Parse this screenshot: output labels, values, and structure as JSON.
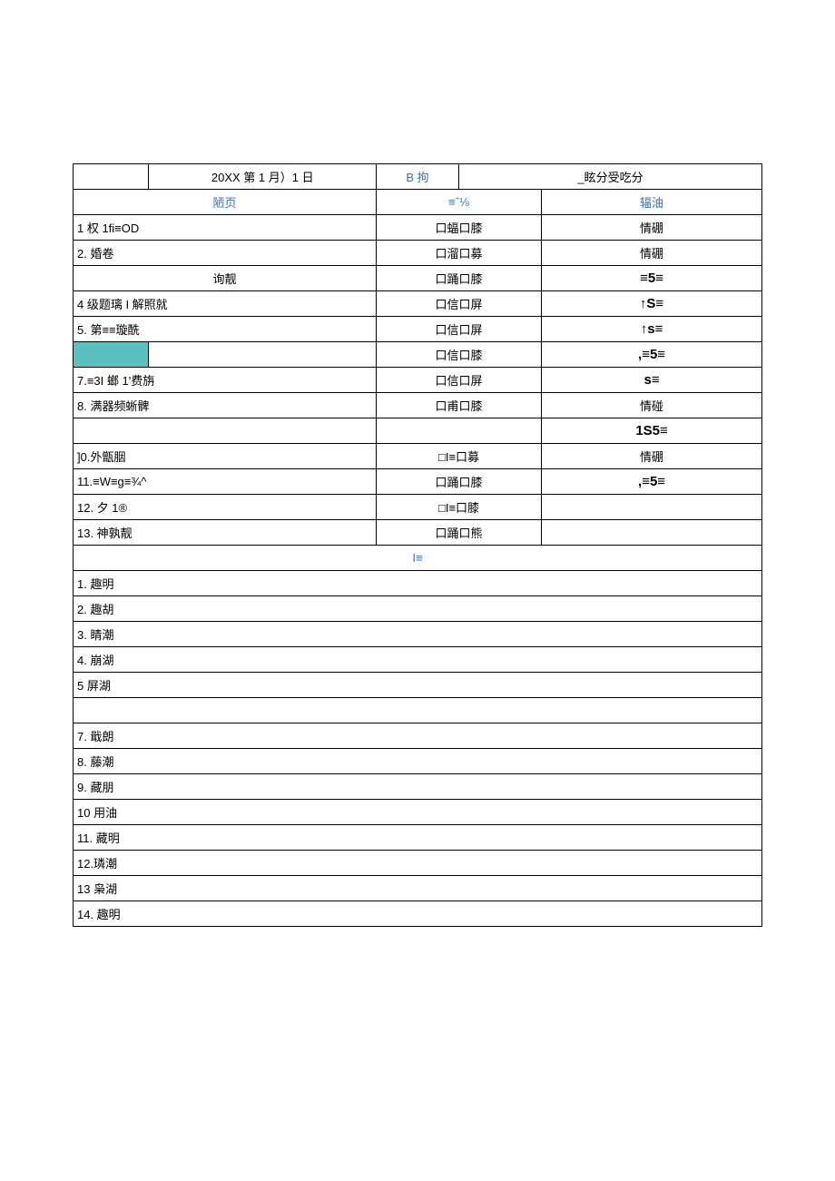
{
  "header": {
    "r1_c2": "20XX 第 1 月）1 日",
    "r1_c3": "B 拘",
    "r1_c4": "_眩分受吃分",
    "r2_c1": "陋页",
    "r2_c2": "≡ˆ⅛",
    "r2_c3": "辐油"
  },
  "section1": [
    {
      "label": "1 权 1fi≡OD",
      "mid": "口蝠口膝",
      "right": "情硼",
      "right_bold": false,
      "highlight": false
    },
    {
      "label": "2. 婚卷",
      "mid": "口溜口募",
      "right": "情硼",
      "right_bold": false,
      "highlight": false
    },
    {
      "label": "询靓",
      "label_center": true,
      "mid": "口踊口膝",
      "right": "≡5≡",
      "right_bold": true,
      "highlight": false
    },
    {
      "label": "4 级题璃 I 解照就",
      "mid": "口信口屏",
      "right": "↑S≡",
      "right_bold": true,
      "highlight": false
    },
    {
      "label": "5. 第≡≡璇酰",
      "mid": "口信口屏",
      "right": "↑s≡",
      "right_bold": true,
      "highlight": false
    },
    {
      "label": "",
      "mid": "口信口膝",
      "right": ",≡5≡",
      "right_bold": true,
      "highlight": true
    },
    {
      "label": "7.≡3I 螂 1'费旃",
      "mid": "口信口屏",
      "right": "s≡",
      "right_bold": true,
      "highlight": false
    },
    {
      "label": "8. 满器频蜥髀",
      "mid": "口甫口膝",
      "right": "情碰",
      "right_bold": false,
      "highlight": false
    },
    {
      "label": "",
      "mid": "",
      "right": "1S5≡",
      "right_bold": true,
      "highlight": false
    },
    {
      "label": "]0.外甑胭",
      "mid": "□I≡口募",
      "right": "情硼",
      "right_bold": false,
      "highlight": false
    },
    {
      "label": "11.≡W≡g≡¾^",
      "mid": "口踊口膝",
      "right": ",≡5≡",
      "right_bold": true,
      "highlight": false
    },
    {
      "label": "12. 夕 1®",
      "mid": "□I≡口膝",
      "right": "",
      "right_bold": false,
      "highlight": false
    },
    {
      "label": "13. 神孰靓",
      "mid": "口踊口熊",
      "right": "",
      "right_bold": false,
      "highlight": false
    }
  ],
  "divider": "I≡",
  "section2": [
    "1. 趣明",
    "2. 趣胡",
    "3. 睛潮",
    "4. 崩湖",
    "5 屏湖",
    "",
    "7. 戢朗",
    "8. 藤潮",
    "9. 藏朋",
    "10 用油",
    "11. 藏明",
    "12.璘潮",
    "13 枭湖",
    "14. 趣明"
  ]
}
